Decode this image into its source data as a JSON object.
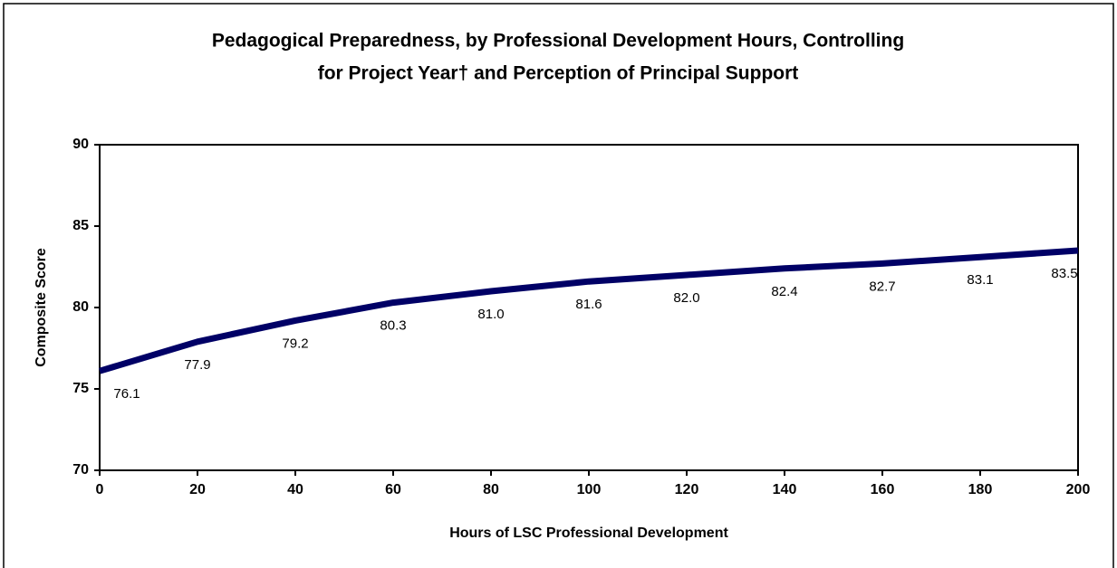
{
  "chart_data": {
    "type": "line",
    "title": [
      "Pedagogical Preparedness, by Professional Development Hours, Controlling",
      "for Project Year† and Perception of Principal Support"
    ],
    "x_label": "Hours of LSC Professional Development",
    "y_label": "Composite Score",
    "x": [
      0,
      20,
      40,
      60,
      80,
      100,
      120,
      140,
      160,
      180,
      200
    ],
    "series": [
      {
        "name": "Composite Score",
        "color": "#000066",
        "values": [
          76.1,
          77.9,
          79.2,
          80.3,
          81.0,
          81.6,
          82.0,
          82.4,
          82.7,
          83.1,
          83.5
        ],
        "value_labels": [
          "76.1",
          "77.9",
          "79.2",
          "80.3",
          "81.0",
          "81.6",
          "82.0",
          "82.4",
          "82.7",
          "83.1",
          "83.5"
        ]
      }
    ],
    "xlim": [
      0,
      200
    ],
    "xticks": [
      0,
      20,
      40,
      60,
      80,
      100,
      120,
      140,
      160,
      180,
      200
    ],
    "ylim": [
      70,
      90
    ],
    "yticks": [
      70,
      75,
      80,
      85,
      90
    ],
    "grid": false
  }
}
